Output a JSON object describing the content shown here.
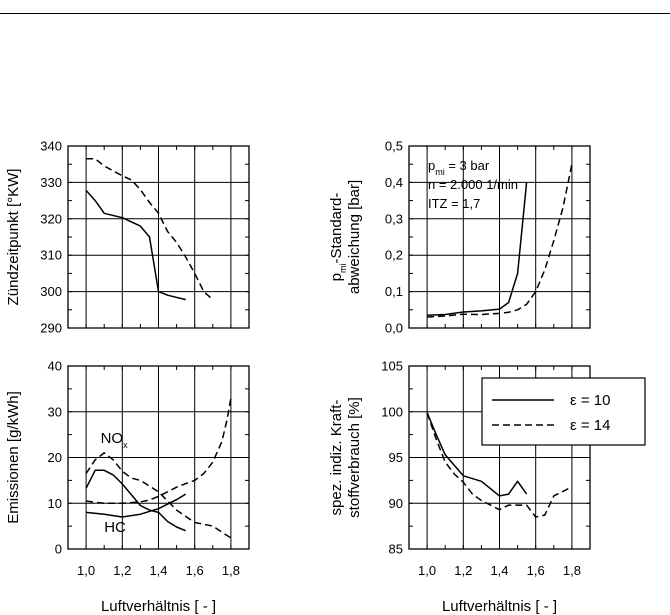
{
  "chart_data": [
    {
      "id": "zuendzeitpunkt",
      "type": "line",
      "ylabel": "Zündzeitpunkt [°KW]",
      "ylim": [
        290,
        340
      ],
      "yticks": [
        "290",
        "300",
        "310",
        "320",
        "330",
        "340"
      ],
      "xlim": [
        0.9,
        1.9
      ],
      "xticks": [
        "1,0",
        "1,2",
        "1,4",
        "1,6",
        "1,8"
      ],
      "grid": true,
      "series": [
        {
          "name": "ε = 10",
          "dash": "solid",
          "x": [
            1.0,
            1.05,
            1.1,
            1.2,
            1.3,
            1.35,
            1.4,
            1.45,
            1.55
          ],
          "y": [
            327.8,
            325.0,
            321.5,
            320.3,
            318.0,
            315.0,
            300.0,
            299.0,
            297.8
          ]
        },
        {
          "name": "ε = 14",
          "dash": "dashed",
          "x": [
            1.0,
            1.05,
            1.1,
            1.2,
            1.25,
            1.3,
            1.35,
            1.4,
            1.45,
            1.5,
            1.55,
            1.6,
            1.65,
            1.7
          ],
          "y": [
            336.5,
            336.5,
            334.5,
            331.8,
            330.7,
            328.0,
            324.5,
            321.5,
            316.5,
            313.5,
            309.5,
            305.0,
            300.0,
            297.8
          ]
        }
      ]
    },
    {
      "id": "standardabweichung",
      "type": "line",
      "ylabel": "p_mi-Standard-abweichung [bar]",
      "ylabel_lines": [
        [
          {
            "t": "p"
          },
          {
            "t": "mi",
            "sub": true
          },
          {
            "t": "-Standard-"
          }
        ],
        [
          {
            "t": "abweichung [bar]"
          }
        ]
      ],
      "ylim": [
        0.0,
        0.5
      ],
      "yticks": [
        "0,0",
        "0,1",
        "0,2",
        "0,3",
        "0,4",
        "0,5"
      ],
      "xlim": [
        0.9,
        1.9
      ],
      "xticks": [
        "1,0",
        "1,2",
        "1,4",
        "1,6",
        "1,8"
      ],
      "grid": true,
      "annotation_lines": [
        [
          {
            "t": "p"
          },
          {
            "t": "mi",
            "sub": true
          },
          {
            "t": " = 3 bar"
          }
        ],
        [
          {
            "t": "n = 2.000 1/min"
          }
        ],
        [
          {
            "t": "ITZ = 1,7"
          }
        ]
      ],
      "series": [
        {
          "name": "ε = 10",
          "dash": "solid",
          "x": [
            1.0,
            1.1,
            1.2,
            1.3,
            1.4,
            1.45,
            1.5,
            1.55
          ],
          "y": [
            0.035,
            0.037,
            0.044,
            0.047,
            0.052,
            0.07,
            0.15,
            0.4
          ]
        },
        {
          "name": "ε = 14",
          "dash": "dashed",
          "x": [
            1.0,
            1.1,
            1.2,
            1.3,
            1.4,
            1.45,
            1.5,
            1.55,
            1.6,
            1.65,
            1.7,
            1.75,
            1.8
          ],
          "y": [
            0.03,
            0.033,
            0.038,
            0.037,
            0.04,
            0.043,
            0.05,
            0.065,
            0.1,
            0.16,
            0.24,
            0.33,
            0.45
          ]
        }
      ]
    },
    {
      "id": "emissionen",
      "type": "line",
      "ylabel": "Emissionen [g/kWh]",
      "ylim": [
        0,
        40
      ],
      "yticks": [
        "0",
        "10",
        "20",
        "30",
        "40"
      ],
      "xlim": [
        0.9,
        1.9
      ],
      "xticks": [
        "1,0",
        "1,2",
        "1,4",
        "1,6",
        "1,8"
      ],
      "xlabel": "Luftverhältnis [ - ]",
      "grid": true,
      "labels": [
        {
          "parts": [
            {
              "t": "NO"
            },
            {
              "t": "x",
              "sub": true
            }
          ],
          "x": 1.08,
          "y": 23.2
        },
        {
          "parts": [
            {
              "t": "HC"
            }
          ],
          "x": 1.1,
          "y": 3.7
        }
      ],
      "series": [
        {
          "name": "NOx ε = 10",
          "dash": "solid",
          "x": [
            1.0,
            1.05,
            1.1,
            1.15,
            1.2,
            1.3,
            1.35,
            1.4,
            1.45,
            1.5,
            1.55
          ],
          "y": [
            13.3,
            17.2,
            17.2,
            16.2,
            14.2,
            9.5,
            8.5,
            8.0,
            6.0,
            4.8,
            4.0
          ]
        },
        {
          "name": "NOx ε = 14",
          "dash": "dashed",
          "x": [
            1.0,
            1.05,
            1.1,
            1.15,
            1.2,
            1.25,
            1.3,
            1.4,
            1.5,
            1.6,
            1.7,
            1.8
          ],
          "y": [
            16.5,
            19.5,
            21.0,
            19.5,
            17.0,
            15.5,
            15.0,
            12.5,
            8.5,
            5.8,
            5.0,
            2.4
          ]
        },
        {
          "name": "HC ε = 10",
          "dash": "solid",
          "x": [
            1.0,
            1.1,
            1.2,
            1.3,
            1.4,
            1.5,
            1.55
          ],
          "y": [
            8.0,
            7.6,
            7.0,
            7.6,
            8.8,
            10.8,
            12.0
          ]
        },
        {
          "name": "HC ε = 14",
          "dash": "dashed",
          "x": [
            1.0,
            1.05,
            1.1,
            1.2,
            1.3,
            1.35,
            1.4,
            1.45,
            1.5,
            1.55,
            1.6,
            1.65,
            1.7,
            1.75,
            1.78,
            1.8
          ],
          "y": [
            10.5,
            10.2,
            10.0,
            10.0,
            10.3,
            10.7,
            11.5,
            12.5,
            13.5,
            14.3,
            15.0,
            16.5,
            19.0,
            23.5,
            28.5,
            33.0
          ]
        }
      ]
    },
    {
      "id": "kraftstoffverbrauch",
      "type": "line",
      "ylabel": "spez. indiz. Kraft-stoffverbrauch [%]",
      "ylabel_lines": [
        [
          {
            "t": "spez. indiz. Kraft-"
          }
        ],
        [
          {
            "t": "stoffverbrauch [%]"
          }
        ]
      ],
      "ylim": [
        85,
        105
      ],
      "yticks": [
        "85",
        "90",
        "95",
        "100",
        "105"
      ],
      "xlim": [
        0.9,
        1.9
      ],
      "xticks": [
        "1,0",
        "1,2",
        "1,4",
        "1,6",
        "1,8"
      ],
      "xlabel": "Luftverhältnis [ - ]",
      "grid": true,
      "legend": {
        "placement": "top-right",
        "entries": [
          {
            "label": "ε = 10",
            "dash": "solid"
          },
          {
            "label": "ε = 14",
            "dash": "dashed"
          }
        ]
      },
      "series": [
        {
          "name": "ε = 10",
          "dash": "solid",
          "x": [
            1.0,
            1.05,
            1.1,
            1.2,
            1.3,
            1.4,
            1.45,
            1.5,
            1.55
          ],
          "y": [
            99.9,
            97.5,
            95.3,
            93.0,
            92.4,
            90.8,
            91.0,
            92.4,
            91.0
          ]
        },
        {
          "name": "ε = 14",
          "dash": "dashed",
          "x": [
            1.0,
            1.05,
            1.1,
            1.15,
            1.2,
            1.25,
            1.3,
            1.35,
            1.4,
            1.45,
            1.5,
            1.55,
            1.6,
            1.65,
            1.7,
            1.75,
            1.8
          ],
          "y": [
            99.9,
            97.0,
            94.5,
            93.2,
            92.3,
            91.0,
            90.3,
            89.8,
            89.3,
            89.8,
            89.8,
            89.8,
            88.5,
            88.7,
            90.8,
            91.3,
            91.8
          ]
        }
      ]
    }
  ]
}
